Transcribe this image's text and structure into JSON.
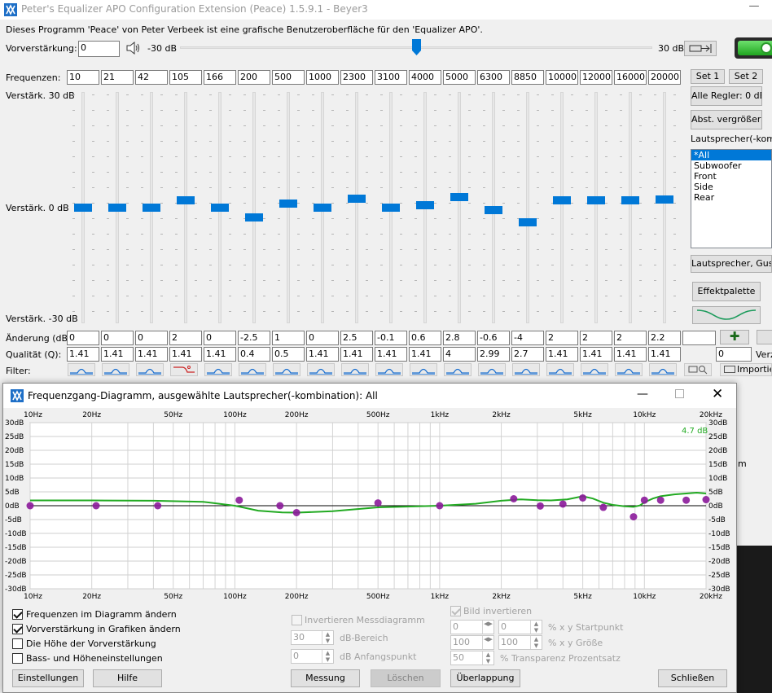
{
  "window": {
    "title": "Peter's Equalizer APO Configuration Extension (Peace) 1.5.9.1 - Beyer3",
    "minimize_glyph": "—"
  },
  "info_text": "Dieses Programm 'Peace' von Peter Verbeek ist eine grafische Benutzeroberfläche für den 'Equalizer APO'.",
  "preamp": {
    "label": "Vorverstärkung:",
    "value": "0",
    "min_label": "-30 dB",
    "max_label": "30 dB",
    "level_fraction": 0.5
  },
  "frequencies": {
    "label": "Frequenzen:",
    "values": [
      "10",
      "21",
      "42",
      "105",
      "166",
      "200",
      "500",
      "1000",
      "2300",
      "3100",
      "4000",
      "5000",
      "6300",
      "8850",
      "10000",
      "12000",
      "16000",
      "20000"
    ]
  },
  "gain_labels": {
    "top": "Verstärk. 30 dB",
    "mid": "Verstärk. 0 dB",
    "bottom": "Verstärk. -30 dB"
  },
  "gains": [
    0,
    0,
    0,
    2,
    0,
    -2.5,
    1,
    0,
    2.5,
    -0.1,
    0.6,
    2.8,
    -0.6,
    -4,
    2,
    2,
    2,
    2.2
  ],
  "change_row": {
    "label": "Änderung (dB):",
    "values": [
      "0",
      "0",
      "0",
      "2",
      "0",
      "-2.5",
      "1",
      "0",
      "2.5",
      "-0.1",
      "0.6",
      "2.8",
      "-0.6",
      "-4",
      "2",
      "2",
      "2",
      "2.2"
    ]
  },
  "quality_row": {
    "label": "Qualität (Q):",
    "values": [
      "1.41",
      "1.41",
      "1.41",
      "1.41",
      "1.41",
      "0.4",
      "0.5",
      "1.41",
      "1.41",
      "1.41",
      "1.41",
      "4",
      "2.99",
      "2.7",
      "1.41",
      "1.41",
      "1.41",
      "1.41"
    ],
    "spin_value": "0",
    "verz_label": "Verz"
  },
  "filter_row": {
    "label": "Filter:",
    "importieren": "Importier"
  },
  "right_panel": {
    "set1": "Set 1",
    "set2": "Set 2",
    "alle_regler": "Alle Regler: 0 dB",
    "abst": "Abst. vergrößern",
    "speakers_label": "Lautsprecher(-kombin",
    "speakers": [
      "*All",
      "Subwoofer",
      "Front",
      "Side",
      "Rear"
    ],
    "speakers_btn": "Lautsprecher, Gusta",
    "effektpalette": "Effektpalette"
  },
  "popup": {
    "title": "Frequenzgang-Diagramm, ausgewählte Lautsprecher(-kombination): All",
    "top_x_labels": [
      "10Hz",
      "20Hz",
      "50Hz",
      "100Hz",
      "200Hz",
      "500Hz",
      "1kHz",
      "2kHz",
      "5kHz",
      "10kHz",
      "20kHz"
    ],
    "max_label": "4.7 dB",
    "options_left": [
      {
        "label": "Frequenzen im Diagramm ändern",
        "checked": true
      },
      {
        "label": "Vorverstärkung in Grafiken ändern",
        "checked": true
      },
      {
        "label": "Die Höhe der Vorverstärkung",
        "checked": false
      },
      {
        "label": "Bass- und Höheneinstellungen",
        "checked": false
      }
    ],
    "invert_mess": "Invertieren Messdiagramm",
    "db_bereich_value": "30",
    "db_bereich": "dB-Bereich",
    "db_anfang_value": "0",
    "db_anfang": "dB Anfangspunkt",
    "bild_invert": "Bild invertieren",
    "startpunkt_x": "0",
    "startpunkt_y": "0",
    "startpunkt": "% x y Startpunkt",
    "groesse_x": "100",
    "groesse_y": "100",
    "groesse": "% x y Größe",
    "transparenz_value": "50",
    "transparenz": "% Transparenz Prozentsatz",
    "buttons": {
      "einstellungen": "Einstellungen",
      "hilfe": "Hilfe",
      "messung": "Messung",
      "loeschen": "Löschen",
      "ueberlappung": "Überlappung",
      "schliessen": "Schließen"
    },
    "right_edge_text": "m"
  },
  "chart_data": {
    "type": "line",
    "x_scale": "log",
    "xlim": [
      10,
      20000
    ],
    "ylim": [
      -30,
      30
    ],
    "x_ticks": [
      10,
      20,
      50,
      100,
      200,
      500,
      1000,
      2000,
      5000,
      10000,
      20000
    ],
    "x_tick_labels": [
      "10Hz",
      "20Hz",
      "50Hz",
      "100Hz",
      "200Hz",
      "500Hz",
      "1kHz",
      "2kHz",
      "5kHz",
      "10kHz",
      "20kHz"
    ],
    "y_ticks": [
      30,
      25,
      20,
      15,
      10,
      5,
      0,
      -5,
      -10,
      -15,
      -20,
      -25,
      -30
    ],
    "y_tick_labels": [
      "30dB",
      "25dB",
      "20dB",
      "15dB",
      "10dB",
      "5dB",
      "0dB",
      "-5dB",
      "-10dB",
      "-15dB",
      "-20dB",
      "-25dB",
      "-30dB"
    ],
    "grid": true,
    "curve_color": "#22aa22",
    "point_color": "#8b1a9a",
    "curve": {
      "x": [
        10,
        20,
        40,
        70,
        100,
        130,
        170,
        200,
        300,
        500,
        1000,
        1500,
        2000,
        2500,
        3000,
        3500,
        4200,
        5000,
        5600,
        6300,
        7000,
        8000,
        8850,
        9500,
        10000,
        11000,
        12000,
        14000,
        16000,
        18000,
        20000
      ],
      "y": [
        1.9,
        1.9,
        1.8,
        1.4,
        0,
        -1.8,
        -2.4,
        -2.5,
        -2,
        -0.6,
        0,
        0.7,
        1.8,
        2.3,
        2.0,
        1.9,
        2.3,
        3.4,
        2.6,
        1.1,
        0.3,
        -0.2,
        -0.4,
        0.1,
        1.2,
        2.6,
        3.4,
        4.1,
        4.4,
        4.7,
        4.4
      ]
    },
    "points": {
      "x": [
        10,
        21,
        42,
        105,
        166,
        200,
        500,
        1000,
        2300,
        3100,
        4000,
        5000,
        6300,
        8850,
        10000,
        12000,
        16000,
        20000
      ],
      "y": [
        0,
        0,
        0,
        2,
        0,
        -2.5,
        1,
        0,
        2.5,
        -0.1,
        0.6,
        2.8,
        -0.6,
        -4,
        2,
        2,
        2,
        2.2
      ]
    }
  }
}
